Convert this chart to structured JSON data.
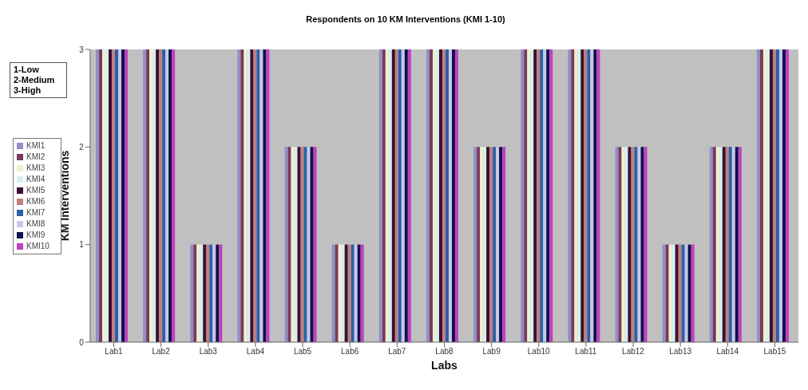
{
  "chart_data": {
    "type": "bar",
    "title": "Respondents on 10 KM Interventions (KMI 1-10)",
    "xlabel": "Labs",
    "ylabel": "KM Interventions",
    "annotations": [
      "1-Low",
      "2-Medium",
      "3-High"
    ],
    "categories": [
      "Lab1",
      "Lab2",
      "Lab3",
      "Lab4",
      "Lab5",
      "Lab6",
      "Lab7",
      "Lab8",
      "Lab9",
      "Lab10",
      "Lab11",
      "Lab12",
      "Lab13",
      "Lab14",
      "Lab15"
    ],
    "series": [
      {
        "name": "KMI1",
        "color": "#8f8fc8",
        "values": [
          3,
          3,
          1,
          3,
          2,
          1,
          3,
          3,
          2,
          3,
          3,
          2,
          1,
          2,
          3
        ]
      },
      {
        "name": "KMI2",
        "color": "#7a3a5a",
        "values": [
          3,
          3,
          1,
          3,
          2,
          1,
          3,
          3,
          2,
          3,
          3,
          2,
          1,
          2,
          3
        ]
      },
      {
        "name": "KMI3",
        "color": "#f0f0d0",
        "values": [
          3,
          3,
          1,
          3,
          2,
          1,
          3,
          3,
          2,
          3,
          3,
          2,
          1,
          2,
          3
        ]
      },
      {
        "name": "KMI4",
        "color": "#d8f0f0",
        "values": [
          3,
          3,
          1,
          3,
          2,
          1,
          3,
          3,
          2,
          3,
          3,
          2,
          1,
          2,
          3
        ]
      },
      {
        "name": "KMI5",
        "color": "#3a1030",
        "values": [
          3,
          3,
          1,
          3,
          2,
          1,
          3,
          3,
          2,
          3,
          3,
          2,
          1,
          2,
          3
        ]
      },
      {
        "name": "KMI6",
        "color": "#c08080",
        "values": [
          3,
          3,
          1,
          3,
          2,
          1,
          3,
          3,
          2,
          3,
          3,
          2,
          1,
          2,
          3
        ]
      },
      {
        "name": "KMI7",
        "color": "#2a60a8",
        "values": [
          3,
          3,
          1,
          3,
          2,
          1,
          3,
          3,
          2,
          3,
          3,
          2,
          1,
          2,
          3
        ]
      },
      {
        "name": "KMI8",
        "color": "#c8c8e8",
        "values": [
          3,
          3,
          1,
          3,
          2,
          1,
          3,
          3,
          2,
          3,
          3,
          2,
          1,
          2,
          3
        ]
      },
      {
        "name": "KMI9",
        "color": "#10104a",
        "values": [
          3,
          3,
          1,
          3,
          2,
          1,
          3,
          3,
          2,
          3,
          3,
          2,
          1,
          2,
          3
        ]
      },
      {
        "name": "KMI10",
        "color": "#c040c0",
        "values": [
          3,
          3,
          1,
          3,
          2,
          1,
          3,
          3,
          2,
          3,
          3,
          2,
          1,
          2,
          3
        ]
      }
    ],
    "ylim": [
      0,
      3
    ],
    "yticks": [
      0,
      1,
      2,
      3
    ],
    "grid": false,
    "legend": "left"
  }
}
